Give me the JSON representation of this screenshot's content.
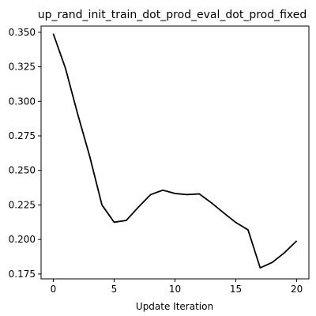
{
  "chart_data": {
    "type": "line",
    "title": "up_rand_init_train_dot_prod_eval_dot_prod_fixed",
    "xlabel": "Update Iteration",
    "ylabel": "",
    "xlim": [
      -1.0,
      21.0
    ],
    "ylim": [
      0.1715,
      0.3545
    ],
    "x_ticks": [
      0,
      5,
      10,
      15,
      20
    ],
    "x_tick_labels": [
      "0",
      "5",
      "10",
      "15",
      "20"
    ],
    "y_ticks": [
      0.175,
      0.2,
      0.225,
      0.25,
      0.275,
      0.3,
      0.325,
      0.35
    ],
    "y_tick_labels": [
      "0.175",
      "0.200",
      "0.225",
      "0.250",
      "0.275",
      "0.300",
      "0.325",
      "0.350"
    ],
    "grid": false,
    "line_color": "#000000",
    "series": [
      {
        "x": [
          0,
          1,
          2,
          3,
          4,
          5,
          6,
          7,
          8,
          9,
          10,
          11,
          12,
          13,
          14,
          15,
          16,
          17,
          18,
          19,
          20
        ],
        "values": [
          0.349,
          0.324,
          0.291,
          0.26,
          0.225,
          0.2125,
          0.2138,
          0.2235,
          0.2325,
          0.2357,
          0.2333,
          0.2325,
          0.233,
          0.2265,
          0.2193,
          0.2123,
          0.207,
          0.1795,
          0.1835,
          0.1905,
          0.199
        ]
      }
    ]
  }
}
